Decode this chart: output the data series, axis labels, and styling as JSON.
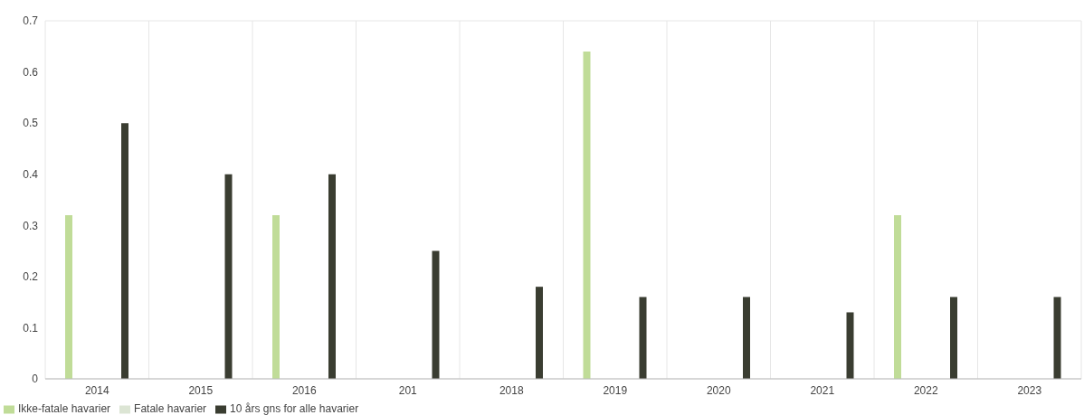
{
  "chart_data": {
    "type": "bar",
    "categories": [
      "2014",
      "2015",
      "2016",
      "201",
      "2018",
      "2019",
      "2020",
      "2021",
      "2022",
      "2023"
    ],
    "series": [
      {
        "name": "Ikke-fatale havarier",
        "color": "#c0dc98",
        "values": [
          0.32,
          0,
          0.32,
          0,
          0,
          0.64,
          0,
          0,
          0.32,
          0
        ]
      },
      {
        "name": "Fatale havarier",
        "color": "#dce5d4",
        "values": [
          0,
          0,
          0,
          0,
          0,
          0,
          0,
          0,
          0,
          0
        ]
      },
      {
        "name": "10 års gns for alle havarier",
        "color": "#3a3d31",
        "values": [
          0.5,
          0.4,
          0.4,
          0.25,
          0.18,
          0.16,
          0.16,
          0.13,
          0.16,
          0.16
        ]
      }
    ],
    "ylim": [
      0,
      0.7
    ],
    "yticks": [
      0,
      0.1,
      0.2,
      0.3,
      0.4,
      0.5,
      0.6,
      0.7
    ],
    "grid": true,
    "legend": "bottom left"
  }
}
